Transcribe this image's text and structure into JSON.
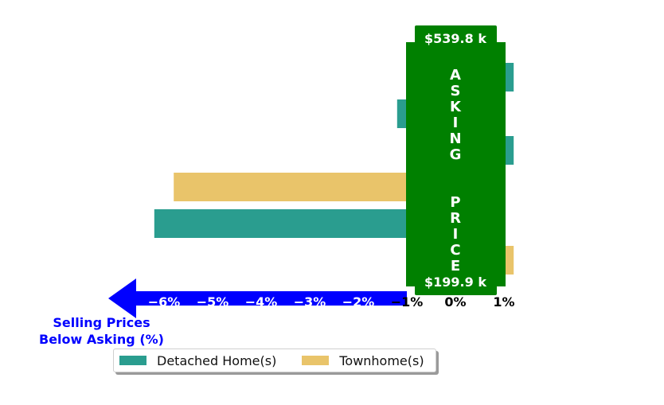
{
  "chart_data": {
    "type": "bar",
    "orientation": "horizontal",
    "xlabel": "Selling Prices\nBelow Asking (%)",
    "xticks": [
      "−6%",
      "−5%",
      "−4%",
      "−3%",
      "−2%",
      "−1%",
      "0%",
      "1%"
    ],
    "series": [
      {
        "name": "Detached Home(s)",
        "color": "#2a9d8f",
        "values": [
          1.2,
          -1.2,
          1.2,
          null,
          -6.2,
          null
        ]
      },
      {
        "name": "Townhome(s)",
        "color": "#e9c46a",
        "values": [
          null,
          null,
          null,
          -5.8,
          null,
          1.2
        ]
      }
    ],
    "overlay": {
      "top_label": "$539.8 k",
      "bottom_label": "$199.9 k",
      "vertical_text": "ASKING  PRICE",
      "color": "#008000"
    },
    "arrow_color": "#0000ff"
  },
  "legend": {
    "detached_label": "Detached Home(s)",
    "townhome_label": "Townhome(s)",
    "detached_color": "#2a9d8f",
    "townhome_color": "#e9c46a"
  }
}
